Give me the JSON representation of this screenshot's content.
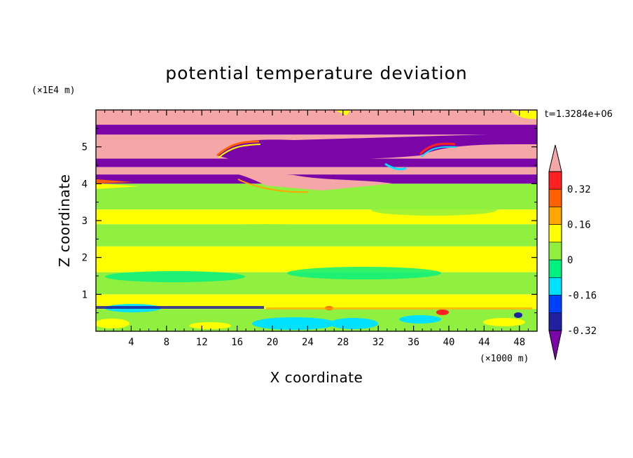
{
  "chart_data": {
    "type": "heatmap",
    "title": "potential temperature deviation",
    "xlabel": "X coordinate",
    "ylabel": "Z coordinate",
    "x_unit": "(×1000 m)",
    "y_unit": "(×1E4 m)",
    "time_label": "t=1.3284e+06",
    "xlim": [
      0,
      50
    ],
    "ylim": [
      0,
      6
    ],
    "x_ticks": [
      "4",
      "8",
      "12",
      "16",
      "20",
      "24",
      "28",
      "32",
      "36",
      "40",
      "44",
      "48"
    ],
    "y_ticks": [
      "1",
      "2",
      "3",
      "4",
      "5"
    ],
    "colorbar": {
      "levels": [
        -0.48,
        -0.4,
        -0.32,
        -0.24,
        -0.16,
        -0.08,
        0,
        0.08,
        0.16,
        0.24,
        0.32,
        0.4,
        0.48
      ],
      "labels": [
        "0.32",
        "0.16",
        "0",
        "-0.16",
        "-0.32"
      ],
      "colors": [
        "#7b06a8",
        "#2020a0",
        "#0040ff",
        "#00e0ff",
        "#00f080",
        "#90f040",
        "#ffff00",
        "#ffa500",
        "#ff6000",
        "#ff2020",
        "#f5a6a6"
      ]
    },
    "bands": [
      {
        "z": [
          5.6,
          6.0
        ],
        "value": 0.48
      },
      {
        "z": [
          5.33,
          5.6
        ],
        "value": -0.48
      },
      {
        "z": [
          4.68,
          5.33
        ],
        "value": 0.48
      },
      {
        "z": [
          4.45,
          4.68
        ],
        "value": -0.48
      },
      {
        "z": [
          4.25,
          4.45
        ],
        "value": 0.48
      },
      {
        "z": [
          4.0,
          4.25
        ],
        "value": -0.48
      },
      {
        "z": [
          3.3,
          4.0
        ],
        "value": -0.04
      },
      {
        "z": [
          2.9,
          3.3
        ],
        "value": 0.04
      },
      {
        "z": [
          2.3,
          2.9
        ],
        "value": -0.04
      },
      {
        "z": [
          1.6,
          2.3
        ],
        "value": 0.04
      },
      {
        "z": [
          1.0,
          1.6
        ],
        "value": -0.04
      },
      {
        "z": [
          0.6,
          1.0
        ],
        "value": 0.04
      },
      {
        "z": [
          0.0,
          0.6
        ],
        "value": -0.04
      }
    ]
  }
}
